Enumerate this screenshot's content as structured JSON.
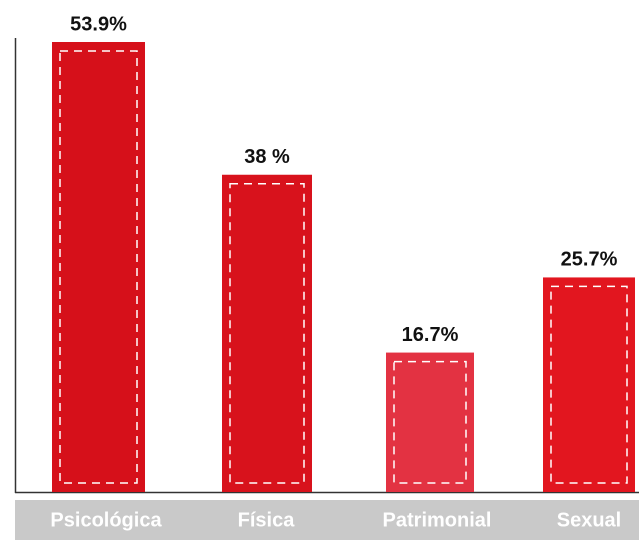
{
  "chart_data": {
    "type": "bar",
    "categories": [
      "Psicológica",
      "Física",
      "Patrimonial",
      "Sexual"
    ],
    "values": [
      53.9,
      38,
      16.7,
      25.7
    ],
    "value_labels": [
      "53.9%",
      "38 %",
      "16.7%",
      "25.7%"
    ],
    "colors": [
      "#d6101a",
      "#d8121c",
      "#e33242",
      "#e2161f"
    ]
  }
}
